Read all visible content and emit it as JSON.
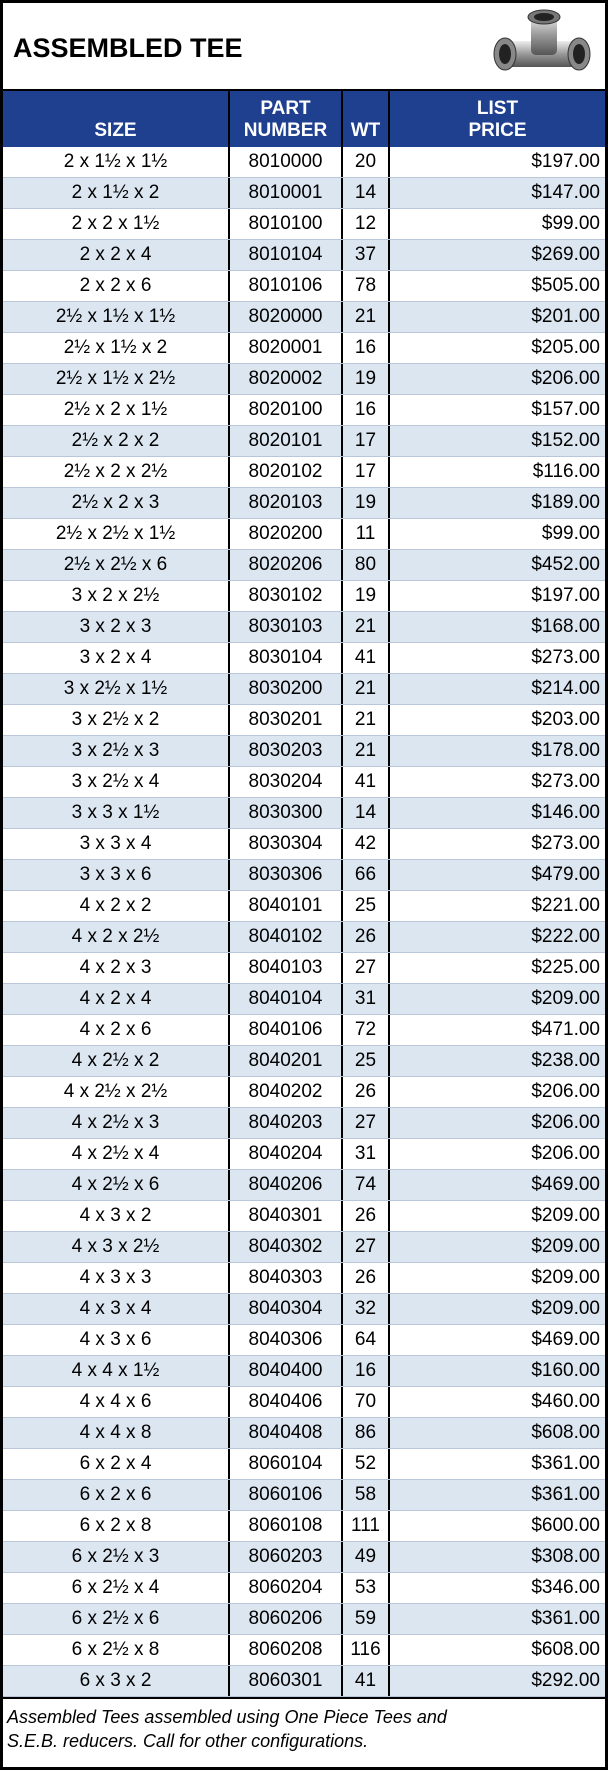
{
  "header": {
    "title": "ASSEMBLED TEE"
  },
  "table": {
    "columns": [
      [
        "SIZE"
      ],
      [
        "PART",
        "NUMBER"
      ],
      [
        "WT"
      ],
      [
        "LIST",
        "PRICE"
      ]
    ],
    "rows": [
      [
        "2 x 1½ x 1½",
        "8010000",
        20,
        "$197.00"
      ],
      [
        "2 x 1½ x 2",
        "8010001",
        14,
        "$147.00"
      ],
      [
        "2 x 2 x 1½",
        "8010100",
        12,
        "$99.00"
      ],
      [
        "2 x 2 x 4",
        "8010104",
        37,
        "$269.00"
      ],
      [
        "2 x 2 x 6",
        "8010106",
        78,
        "$505.00"
      ],
      [
        "2½ x 1½ x 1½",
        "8020000",
        21,
        "$201.00"
      ],
      [
        "2½ x 1½ x 2",
        "8020001",
        16,
        "$205.00"
      ],
      [
        "2½ x 1½ x 2½",
        "8020002",
        19,
        "$206.00"
      ],
      [
        "2½ x 2 x 1½",
        "8020100",
        16,
        "$157.00"
      ],
      [
        "2½ x 2 x 2",
        "8020101",
        17,
        "$152.00"
      ],
      [
        "2½ x 2 x 2½",
        "8020102",
        17,
        "$116.00"
      ],
      [
        "2½ x 2 x 3",
        "8020103",
        19,
        "$189.00"
      ],
      [
        "2½ x 2½ x 1½",
        "8020200",
        11,
        "$99.00"
      ],
      [
        "2½ x 2½ x 6",
        "8020206",
        80,
        "$452.00"
      ],
      [
        "3 x 2 x 2½",
        "8030102",
        19,
        "$197.00"
      ],
      [
        "3 x 2 x 3",
        "8030103",
        21,
        "$168.00"
      ],
      [
        "3 x 2 x 4",
        "8030104",
        41,
        "$273.00"
      ],
      [
        "3 x 2½ x 1½",
        "8030200",
        21,
        "$214.00"
      ],
      [
        "3 x 2½ x 2",
        "8030201",
        21,
        "$203.00"
      ],
      [
        "3 x 2½ x 3",
        "8030203",
        21,
        "$178.00"
      ],
      [
        "3 x 2½ x 4",
        "8030204",
        41,
        "$273.00"
      ],
      [
        "3 x 3 x 1½",
        "8030300",
        14,
        "$146.00"
      ],
      [
        "3 x 3 x 4",
        "8030304",
        42,
        "$273.00"
      ],
      [
        "3 x 3 x 6",
        "8030306",
        66,
        "$479.00"
      ],
      [
        "4 x 2 x 2",
        "8040101",
        25,
        "$221.00"
      ],
      [
        "4 x 2 x 2½",
        "8040102",
        26,
        "$222.00"
      ],
      [
        "4 x 2 x 3",
        "8040103",
        27,
        "$225.00"
      ],
      [
        "4 x 2 x 4",
        "8040104",
        31,
        "$209.00"
      ],
      [
        "4 x 2 x 6",
        "8040106",
        72,
        "$471.00"
      ],
      [
        "4 x 2½ x 2",
        "8040201",
        25,
        "$238.00"
      ],
      [
        "4 x 2½ x 2½",
        "8040202",
        26,
        "$206.00"
      ],
      [
        "4 x 2½ x 3",
        "8040203",
        27,
        "$206.00"
      ],
      [
        "4 x 2½ x 4",
        "8040204",
        31,
        "$206.00"
      ],
      [
        "4 x 2½ x 6",
        "8040206",
        74,
        "$469.00"
      ],
      [
        "4 x 3 x 2",
        "8040301",
        26,
        "$209.00"
      ],
      [
        "4 x 3 x 2½",
        "8040302",
        27,
        "$209.00"
      ],
      [
        "4 x 3 x 3",
        "8040303",
        26,
        "$209.00"
      ],
      [
        "4 x 3 x 4",
        "8040304",
        32,
        "$209.00"
      ],
      [
        "4 x 3 x 6",
        "8040306",
        64,
        "$469.00"
      ],
      [
        "4 x 4 x 1½",
        "8040400",
        16,
        "$160.00"
      ],
      [
        "4 x 4 x 6",
        "8040406",
        70,
        "$460.00"
      ],
      [
        "4 x 4 x 8",
        "8040408",
        86,
        "$608.00"
      ],
      [
        "6 x 2 x 4",
        "8060104",
        52,
        "$361.00"
      ],
      [
        "6 x 2 x 6",
        "8060106",
        58,
        "$361.00"
      ],
      [
        "6 x 2 x 8",
        "8060108",
        111,
        "$600.00"
      ],
      [
        "6 x 2½ x 3",
        "8060203",
        49,
        "$308.00"
      ],
      [
        "6 x 2½ x 4",
        "8060204",
        53,
        "$346.00"
      ],
      [
        "6 x 2½ x 6",
        "8060206",
        59,
        "$361.00"
      ],
      [
        "6 x 2½ x 8",
        "8060208",
        116,
        "$608.00"
      ],
      [
        "6 x 3 x 2",
        "8060301",
        41,
        "$292.00"
      ]
    ]
  },
  "footer": {
    "note": [
      "Assembled Tees assembled using One Piece Tees and",
      "S.E.B. reducers. Call for other configurations."
    ]
  }
}
